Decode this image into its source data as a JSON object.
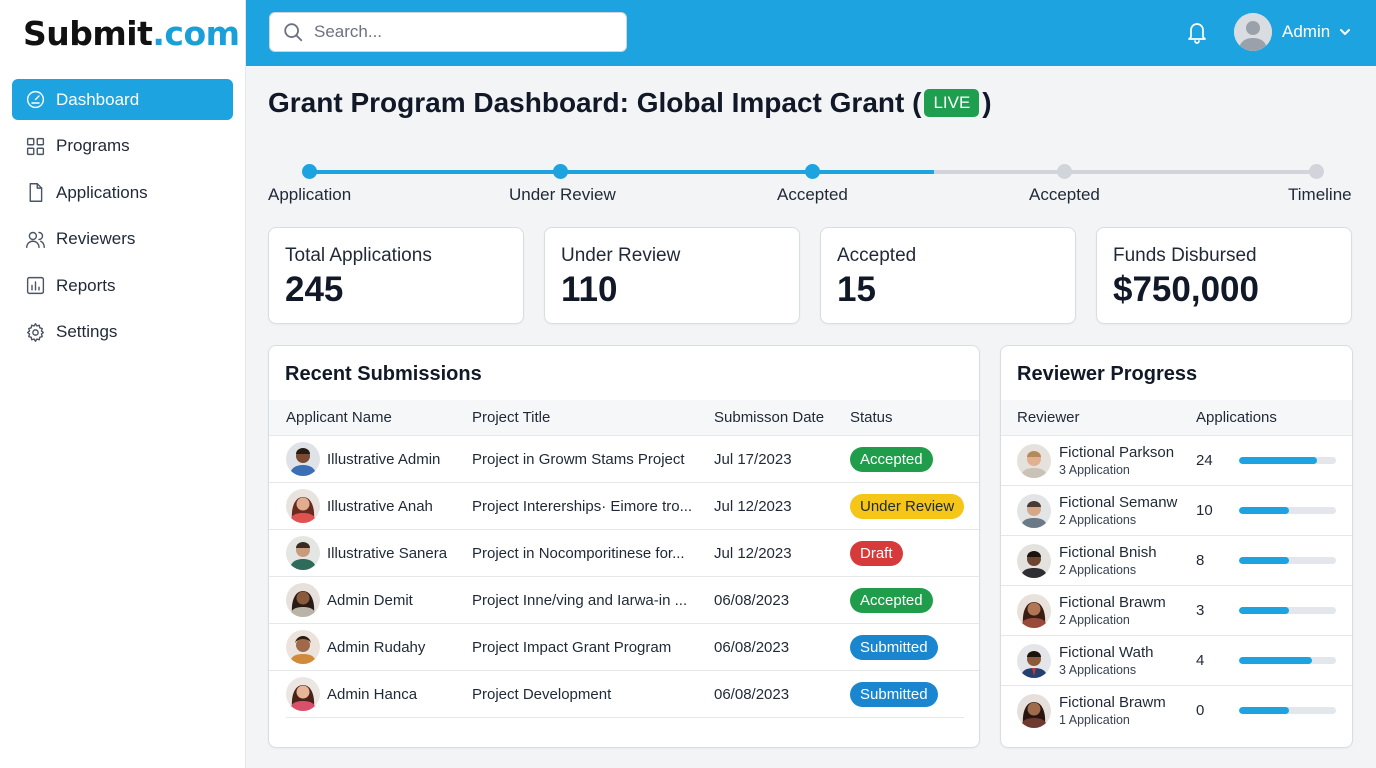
{
  "brand": {
    "part1": "Submit",
    "part2": ".com"
  },
  "colors": {
    "accent": "#1ca3e0",
    "live": "#1e9e4f",
    "accepted": "#1f9d4b",
    "under_review": "#f5c518",
    "draft": "#d73a3a",
    "submitted": "#1a86d0"
  },
  "sidebar": {
    "items": [
      {
        "label": "Dashboard",
        "icon": "gauge-icon",
        "active": true
      },
      {
        "label": "Programs",
        "icon": "grid-icon",
        "active": false
      },
      {
        "label": "Applications",
        "icon": "document-icon",
        "active": false
      },
      {
        "label": "Reviewers",
        "icon": "users-icon",
        "active": false
      },
      {
        "label": "Reports",
        "icon": "bar-chart-icon",
        "active": false
      },
      {
        "label": "Settings",
        "icon": "gear-icon",
        "active": false
      }
    ]
  },
  "topbar": {
    "search_placeholder": "Search...",
    "user_name": "Admin"
  },
  "page": {
    "title_prefix": "Grant Program Dashboard: Global Impact Grant (",
    "live_badge": "LIVE",
    "title_suffix": ")"
  },
  "timeline": {
    "steps": [
      {
        "label": "Application",
        "done": true
      },
      {
        "label": "Under Review",
        "done": true
      },
      {
        "label": "Accepted",
        "done": true
      },
      {
        "label": "Accepted",
        "done": false
      },
      {
        "label": "Timeline",
        "done": false
      }
    ]
  },
  "stats": [
    {
      "label": "Total Applications",
      "value": "245"
    },
    {
      "label": "Under Review",
      "value": "110"
    },
    {
      "label": "Accepted",
      "value": "15"
    },
    {
      "label": "Funds Disbursed",
      "value": "$750,000"
    }
  ],
  "submissions": {
    "title": "Recent Submissions",
    "columns": [
      "Applicant Name",
      "Project Title",
      "Submisson Date",
      "Status"
    ],
    "rows": [
      {
        "name": "Illustrative Admin",
        "project": "Project in Growm Stams Project",
        "date": "Jul 17/2023",
        "status": "Accepted",
        "status_type": "accepted"
      },
      {
        "name": "Illustrative Anah",
        "project": "Project Intererships· Eimore tro...",
        "date": "Jul 12/2023",
        "status": "Under Review",
        "status_type": "review"
      },
      {
        "name": "Illustrative Sanera",
        "project": "Project in Nocomporitinese for...",
        "date": "Jul 12/2023",
        "status": "Draft",
        "status_type": "draft"
      },
      {
        "name": "Admin Demit",
        "project": "Project Inne/ving and Iarwa-in ...",
        "date": "06/08/2023",
        "status": "Accepted",
        "status_type": "accepted"
      },
      {
        "name": "Admin Rudahy",
        "project": "Project Impact Grant Program",
        "date": "06/08/2023",
        "status": "Submitted",
        "status_type": "submitted"
      },
      {
        "name": "Admin Hanca",
        "project": "Project Development",
        "date": "06/08/2023",
        "status": "Submitted",
        "status_type": "submitted"
      }
    ]
  },
  "reviewers": {
    "title": "Reviewer Progress",
    "columns": [
      "Reviewer",
      "Applications"
    ],
    "rows": [
      {
        "name": "Fictional Parkson",
        "sub": "3 Application",
        "count": "24",
        "progress": 0.8
      },
      {
        "name": "Fictional Semanw",
        "sub": "2 Applications",
        "count": "10",
        "progress": 0.52
      },
      {
        "name": "Fictional Bnish",
        "sub": "2 Applications",
        "count": "8",
        "progress": 0.52
      },
      {
        "name": "Fictional Brawm",
        "sub": "2 Application",
        "count": "3",
        "progress": 0.52
      },
      {
        "name": "Fictional Wath",
        "sub": "3 Applications",
        "count": "4",
        "progress": 0.75
      },
      {
        "name": "Fictional Brawm",
        "sub": "1 Application",
        "count": "0",
        "progress": 0.52
      }
    ]
  }
}
